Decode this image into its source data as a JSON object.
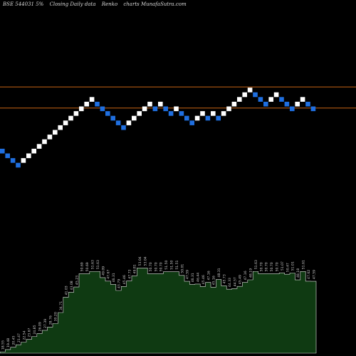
{
  "header": {
    "symbol": "BSE 544031 5%",
    "data_label": "Closing Daily data",
    "chart_kind": "Renko",
    "source": "charts MunafaSutra.com"
  },
  "chart_data": [
    {
      "type": "renko",
      "title": "BSE 544031 5%",
      "bricks": [
        {
          "seq": 0,
          "value": 17,
          "direction": "down"
        },
        {
          "seq": 1,
          "value": 16,
          "direction": "down"
        },
        {
          "seq": 2,
          "value": 15,
          "direction": "down"
        },
        {
          "seq": 3,
          "value": 14,
          "direction": "down"
        },
        {
          "seq": 4,
          "value": 15,
          "direction": "up"
        },
        {
          "seq": 5,
          "value": 16,
          "direction": "up"
        },
        {
          "seq": 6,
          "value": 17,
          "direction": "up"
        },
        {
          "seq": 7,
          "value": 18,
          "direction": "up"
        },
        {
          "seq": 8,
          "value": 19,
          "direction": "up"
        },
        {
          "seq": 9,
          "value": 20,
          "direction": "up"
        },
        {
          "seq": 10,
          "value": 21,
          "direction": "up"
        },
        {
          "seq": 11,
          "value": 22,
          "direction": "up"
        },
        {
          "seq": 12,
          "value": 23,
          "direction": "up"
        },
        {
          "seq": 13,
          "value": 24,
          "direction": "up"
        },
        {
          "seq": 14,
          "value": 25,
          "direction": "up"
        },
        {
          "seq": 15,
          "value": 26,
          "direction": "up"
        },
        {
          "seq": 16,
          "value": 27,
          "direction": "up"
        },
        {
          "seq": 17,
          "value": 28,
          "direction": "up"
        },
        {
          "seq": 18,
          "value": 27,
          "direction": "down"
        },
        {
          "seq": 19,
          "value": 26,
          "direction": "down"
        },
        {
          "seq": 20,
          "value": 25,
          "direction": "down"
        },
        {
          "seq": 21,
          "value": 24,
          "direction": "down"
        },
        {
          "seq": 22,
          "value": 23,
          "direction": "down"
        },
        {
          "seq": 23,
          "value": 22,
          "direction": "down"
        },
        {
          "seq": 24,
          "value": 23,
          "direction": "up"
        },
        {
          "seq": 25,
          "value": 24,
          "direction": "up"
        },
        {
          "seq": 26,
          "value": 25,
          "direction": "up"
        },
        {
          "seq": 27,
          "value": 26,
          "direction": "up"
        },
        {
          "seq": 28,
          "value": 27,
          "direction": "up"
        },
        {
          "seq": 29,
          "value": 26,
          "direction": "down"
        },
        {
          "seq": 30,
          "value": 27,
          "direction": "up"
        },
        {
          "seq": 31,
          "value": 26,
          "direction": "down"
        },
        {
          "seq": 32,
          "value": 25,
          "direction": "down"
        },
        {
          "seq": 33,
          "value": 26,
          "direction": "up"
        },
        {
          "seq": 34,
          "value": 25,
          "direction": "down"
        },
        {
          "seq": 35,
          "value": 24,
          "direction": "down"
        },
        {
          "seq": 36,
          "value": 23,
          "direction": "down"
        },
        {
          "seq": 37,
          "value": 24,
          "direction": "up"
        },
        {
          "seq": 38,
          "value": 25,
          "direction": "up"
        },
        {
          "seq": 39,
          "value": 24,
          "direction": "down"
        },
        {
          "seq": 40,
          "value": 25,
          "direction": "up"
        },
        {
          "seq": 41,
          "value": 24,
          "direction": "down"
        },
        {
          "seq": 42,
          "value": 25,
          "direction": "up"
        },
        {
          "seq": 43,
          "value": 26,
          "direction": "up"
        },
        {
          "seq": 44,
          "value": 27,
          "direction": "up"
        },
        {
          "seq": 45,
          "value": 28,
          "direction": "up"
        },
        {
          "seq": 46,
          "value": 29,
          "direction": "up"
        },
        {
          "seq": 47,
          "value": 30,
          "direction": "up"
        },
        {
          "seq": 48,
          "value": 29,
          "direction": "down"
        },
        {
          "seq": 49,
          "value": 28,
          "direction": "down"
        },
        {
          "seq": 50,
          "value": 27,
          "direction": "down"
        },
        {
          "seq": 51,
          "value": 28,
          "direction": "up"
        },
        {
          "seq": 52,
          "value": 29,
          "direction": "up"
        },
        {
          "seq": 53,
          "value": 28,
          "direction": "down"
        },
        {
          "seq": 54,
          "value": 27,
          "direction": "down"
        },
        {
          "seq": 55,
          "value": 26,
          "direction": "down"
        },
        {
          "seq": 56,
          "value": 27,
          "direction": "up"
        },
        {
          "seq": 57,
          "value": 28,
          "direction": "up"
        },
        {
          "seq": 58,
          "value": 27,
          "direction": "down"
        },
        {
          "seq": 59,
          "value": 26,
          "direction": "down"
        }
      ],
      "reference_lines": [
        30,
        25.5
      ],
      "colors": {
        "up": "#ffffff",
        "down": "#1f6fe0",
        "reference_line": "#c86414",
        "area_fill": "#0f3a12",
        "area_stroke": "#e0e0e0"
      }
    },
    {
      "type": "area",
      "title": "",
      "price_labels": [
        "18.55",
        "19.48",
        "20.45",
        "21.47",
        "22.54",
        "23.67",
        "24.85",
        "26.09",
        "27.39",
        "28.76",
        "30.20",
        "34.71",
        "41.03",
        "43.08",
        "45.23",
        "50.69",
        "50.69",
        "51.63",
        "51.63",
        "49.09",
        "47.67",
        "46.31",
        "43.79",
        "45.46",
        "47.73",
        "49.81",
        "53.04",
        "53.04",
        "50.70",
        "50.70",
        "50.70",
        "51.50",
        "51.50",
        "51.51",
        "50.01",
        "47.59",
        "46.31",
        "46.44",
        "45.46",
        "47.16",
        "45.16",
        "48.31",
        "45.73",
        "44.33",
        "44.57",
        "45.49",
        "47.16",
        "48.19",
        "51.63",
        "50.70",
        "50.70",
        "50.70",
        "50.70",
        "51.07",
        "50.47",
        "51.01",
        "48.18",
        "51.61",
        "47.62",
        "47.59"
      ]
    }
  ]
}
